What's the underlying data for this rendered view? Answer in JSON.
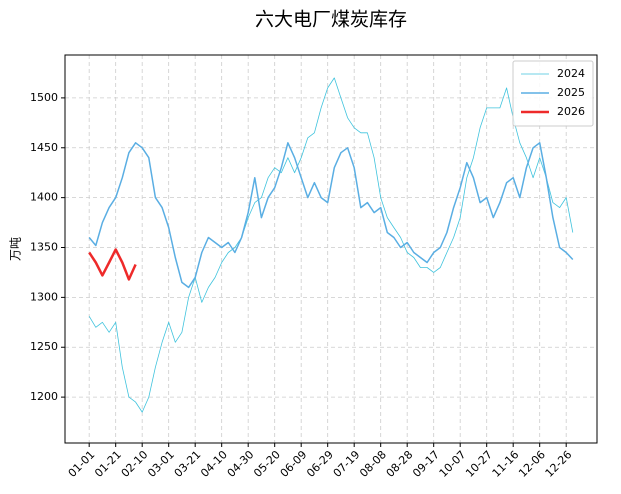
{
  "chart_data": {
    "type": "line",
    "title": "六大电厂煤炭库存",
    "y_label": "万吨",
    "x": [
      "01-01",
      "01-06",
      "01-11",
      "01-16",
      "01-21",
      "01-26",
      "01-31",
      "02-05",
      "02-10",
      "02-15",
      "02-20",
      "02-25",
      "03-01",
      "03-06",
      "03-11",
      "03-16",
      "03-21",
      "03-26",
      "03-31",
      "04-05",
      "04-10",
      "04-15",
      "04-20",
      "04-25",
      "04-30",
      "05-05",
      "05-10",
      "05-15",
      "05-20",
      "05-25",
      "05-30",
      "06-04",
      "06-09",
      "06-14",
      "06-19",
      "06-24",
      "06-29",
      "07-04",
      "07-09",
      "07-14",
      "07-19",
      "07-24",
      "07-29",
      "08-03",
      "08-08",
      "08-13",
      "08-18",
      "08-23",
      "08-28",
      "09-02",
      "09-07",
      "09-12",
      "09-17",
      "09-22",
      "09-27",
      "10-02",
      "10-07",
      "10-12",
      "10-17",
      "10-22",
      "10-27",
      "11-01",
      "11-06",
      "11-11",
      "11-16",
      "11-21",
      "11-26",
      "12-01",
      "12-06",
      "12-11",
      "12-16",
      "12-21",
      "12-26",
      "12-31"
    ],
    "series": [
      {
        "name": "2024",
        "color": "#3fc3dd",
        "width": 0.8,
        "values": [
          1281,
          1270,
          1275,
          1265,
          1275,
          1230,
          1200,
          1195,
          1185,
          1200,
          1230,
          1255,
          1275,
          1255,
          1265,
          1300,
          1320,
          1295,
          1310,
          1320,
          1335,
          1345,
          1350,
          1360,
          1380,
          1395,
          1400,
          1420,
          1430,
          1425,
          1440,
          1425,
          1440,
          1460,
          1465,
          1490,
          1510,
          1520,
          1500,
          1480,
          1470,
          1465,
          1465,
          1440,
          1400,
          1380,
          1370,
          1360,
          1345,
          1340,
          1330,
          1330,
          1325,
          1330,
          1345,
          1360,
          1380,
          1420,
          1440,
          1470,
          1490,
          1490,
          1490,
          1510,
          1480,
          1455,
          1440,
          1420,
          1440,
          1420,
          1395,
          1390,
          1400,
          1365
        ]
      },
      {
        "name": "2025",
        "color": "#5aaee3",
        "width": 1.5,
        "values": [
          1360,
          1352,
          1375,
          1390,
          1400,
          1420,
          1445,
          1455,
          1450,
          1440,
          1400,
          1390,
          1370,
          1340,
          1315,
          1310,
          1320,
          1345,
          1360,
          1355,
          1350,
          1355,
          1345,
          1360,
          1385,
          1420,
          1380,
          1400,
          1410,
          1430,
          1455,
          1440,
          1420,
          1400,
          1415,
          1400,
          1395,
          1430,
          1445,
          1450,
          1430,
          1390,
          1395,
          1385,
          1390,
          1365,
          1360,
          1350,
          1355,
          1345,
          1340,
          1335,
          1345,
          1350,
          1365,
          1390,
          1410,
          1435,
          1420,
          1395,
          1400,
          1380,
          1395,
          1415,
          1420,
          1400,
          1430,
          1450,
          1455,
          1420,
          1380,
          1350,
          1345,
          1338
        ]
      },
      {
        "name": "2026",
        "color": "#ee2a2a",
        "width": 2.5,
        "values": [
          1345,
          1335,
          1322,
          1335,
          1348,
          1335,
          1318,
          1333,
          null,
          null,
          null,
          null,
          null,
          null,
          null,
          null,
          null,
          null,
          null,
          null,
          null,
          null,
          null,
          null,
          null,
          null,
          null,
          null,
          null,
          null,
          null,
          null,
          null,
          null,
          null,
          null,
          null,
          null,
          null,
          null,
          null,
          null,
          null,
          null,
          null,
          null,
          null,
          null,
          null,
          null,
          null,
          null,
          null,
          null,
          null,
          null,
          null,
          null,
          null,
          null,
          null,
          null,
          null,
          null,
          null,
          null,
          null,
          null,
          null,
          null,
          null,
          null,
          null,
          null
        ]
      }
    ],
    "xticks": [
      "01-01",
      "01-21",
      "02-10",
      "03-01",
      "03-21",
      "04-10",
      "04-30",
      "05-20",
      "06-09",
      "06-29",
      "07-19",
      "08-08",
      "08-28",
      "09-17",
      "10-07",
      "10-27",
      "11-16",
      "12-06",
      "12-26"
    ],
    "ylim": [
      1154,
      1543
    ],
    "yticks": [
      1200,
      1250,
      1300,
      1350,
      1400,
      1450,
      1500
    ],
    "grid": true,
    "legend": "upper right"
  }
}
